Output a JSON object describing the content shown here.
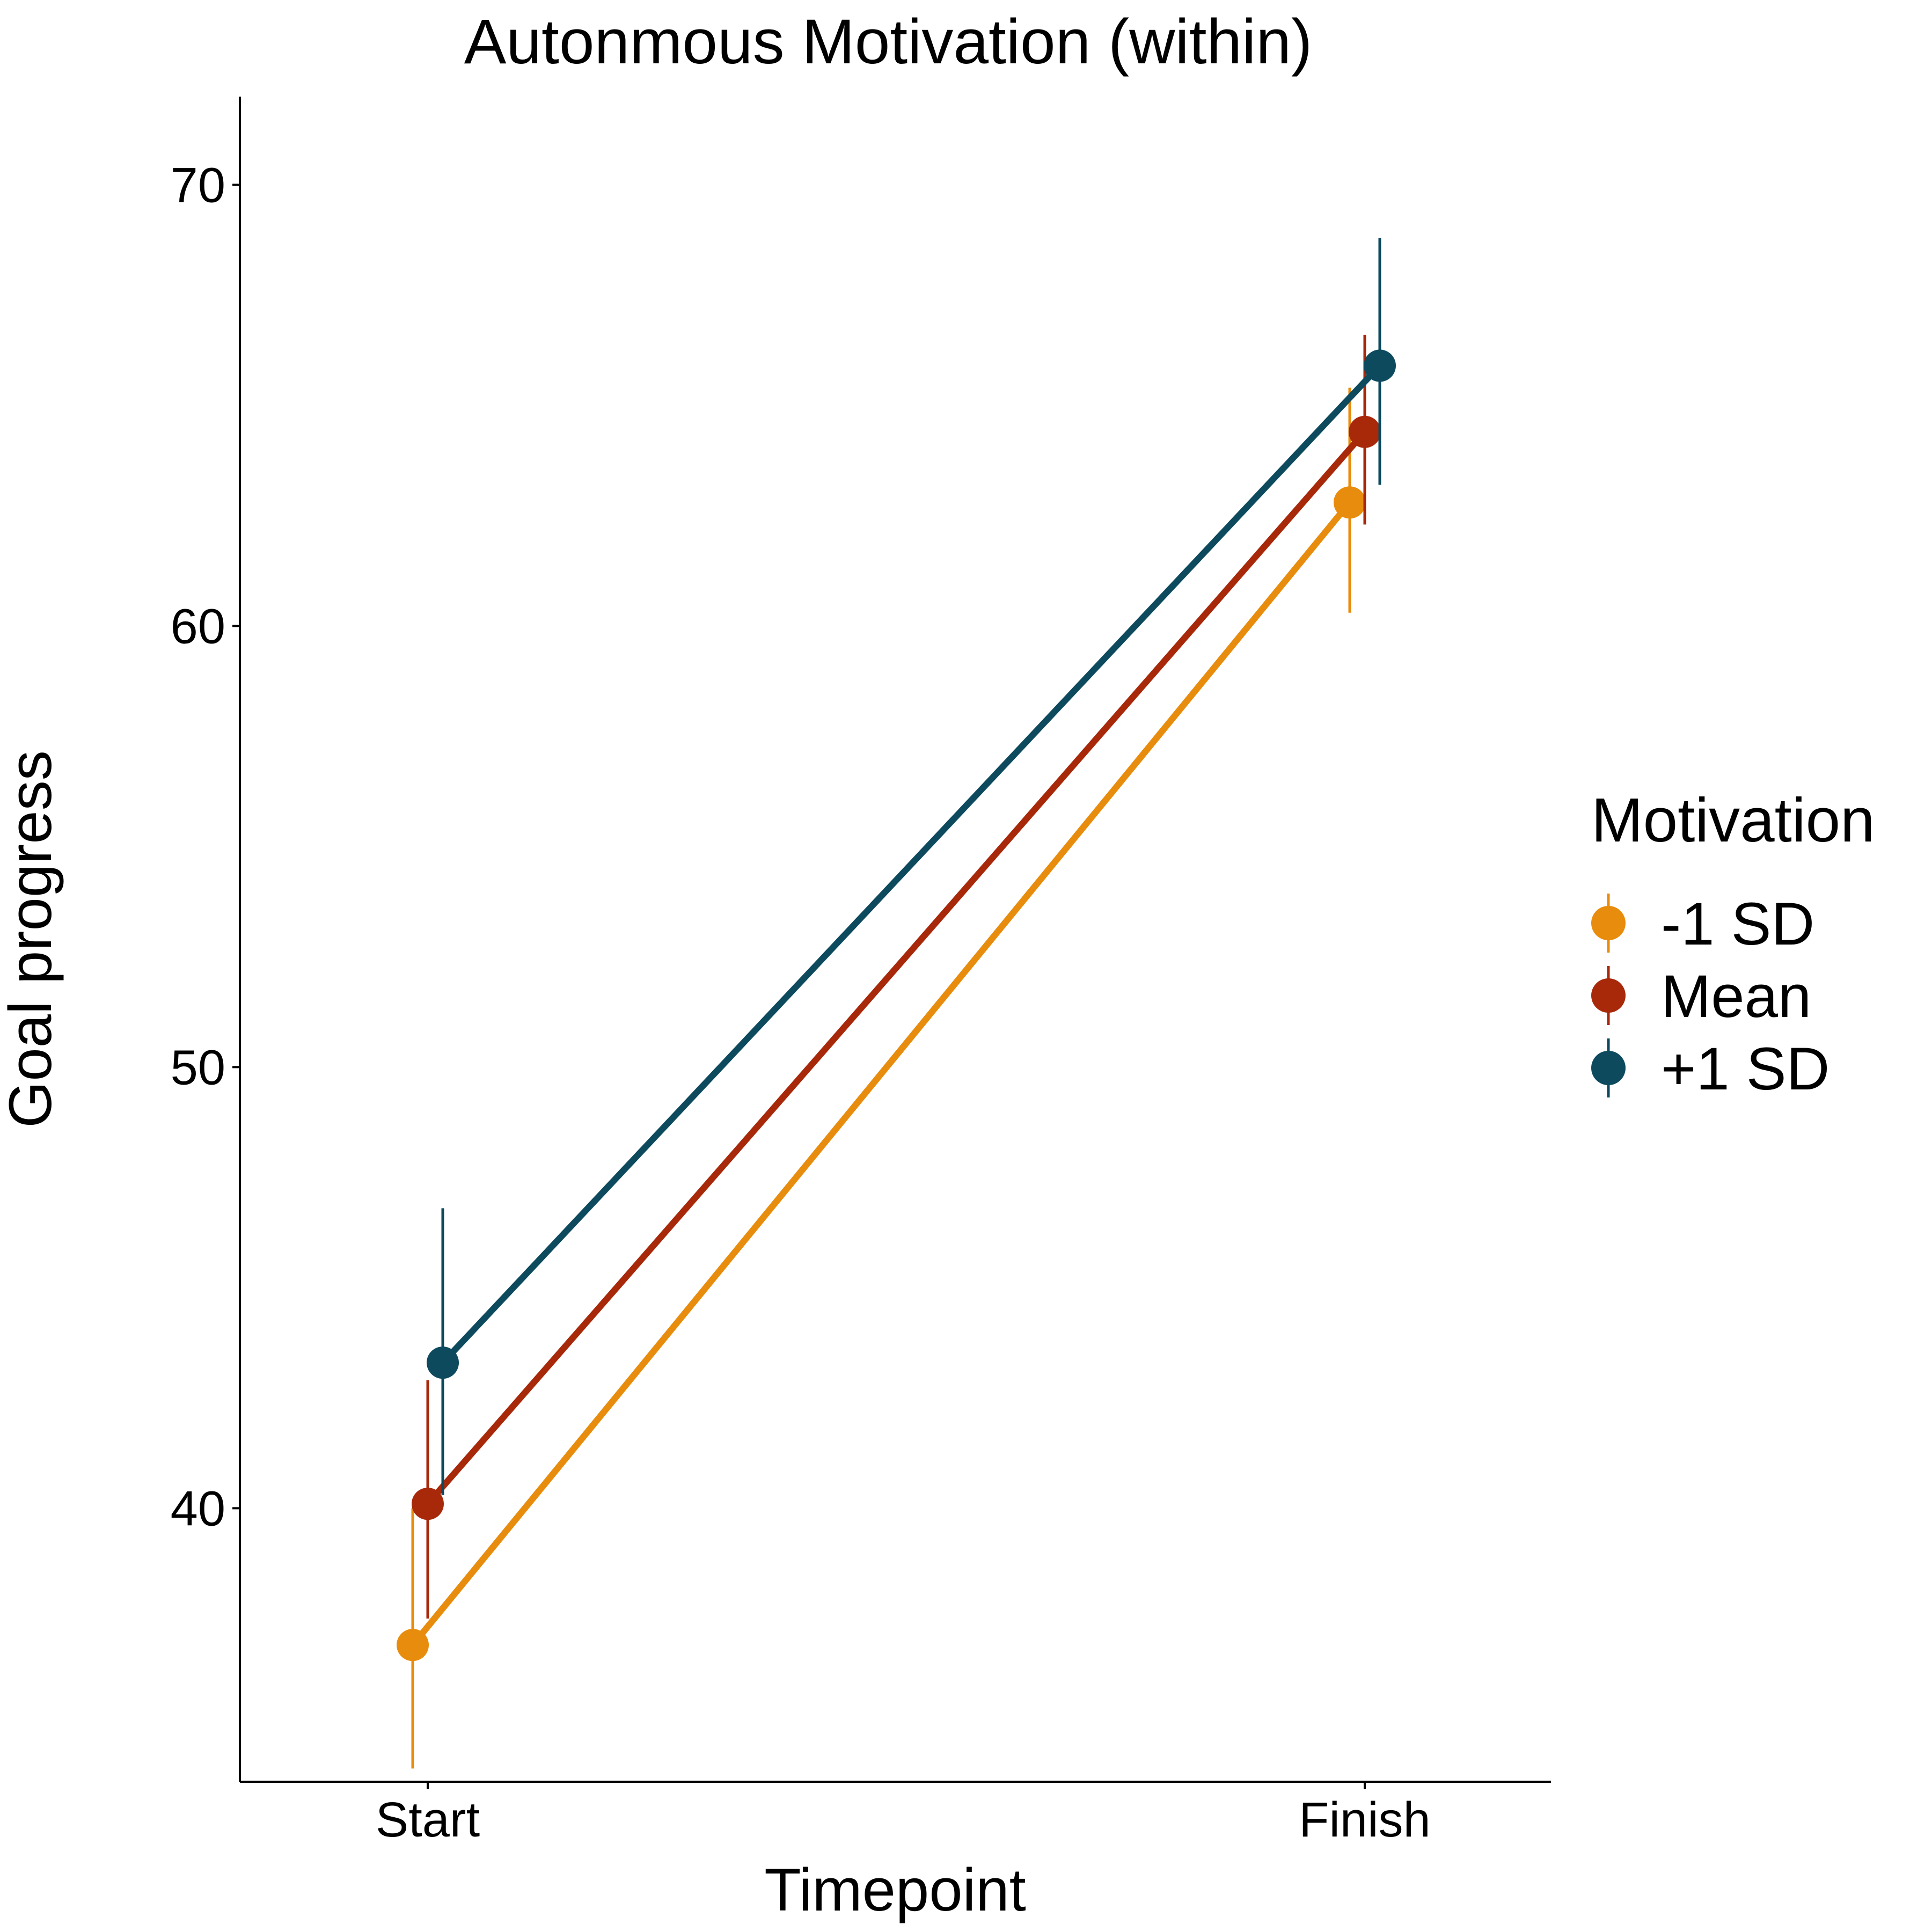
{
  "chart_data": {
    "type": "line",
    "title": "Autonmous Motivation (within)",
    "xlabel": "Timepoint",
    "ylabel": "Goal progress",
    "categories": [
      "Start",
      "Finish"
    ],
    "ylim": [
      33.8,
      72.0
    ],
    "yticks": [
      40,
      50,
      60,
      70
    ],
    "grid": false,
    "error_bars": true,
    "legend": {
      "title": "Motivation",
      "position": "right"
    },
    "series": [
      {
        "name": "-1 SD",
        "color": "#E88C0D",
        "values": [
          36.9,
          62.8
        ],
        "lower": [
          34.1,
          60.3
        ],
        "upper": [
          40.0,
          65.4
        ]
      },
      {
        "name": "Mean",
        "color": "#A8280A",
        "values": [
          40.1,
          64.4
        ],
        "lower": [
          37.5,
          62.3
        ],
        "upper": [
          42.9,
          66.6
        ]
      },
      {
        "name": "+1 SD",
        "color": "#0D4A5E",
        "values": [
          43.3,
          65.9
        ],
        "lower": [
          40.3,
          63.2
        ],
        "upper": [
          46.8,
          68.8
        ]
      }
    ]
  }
}
